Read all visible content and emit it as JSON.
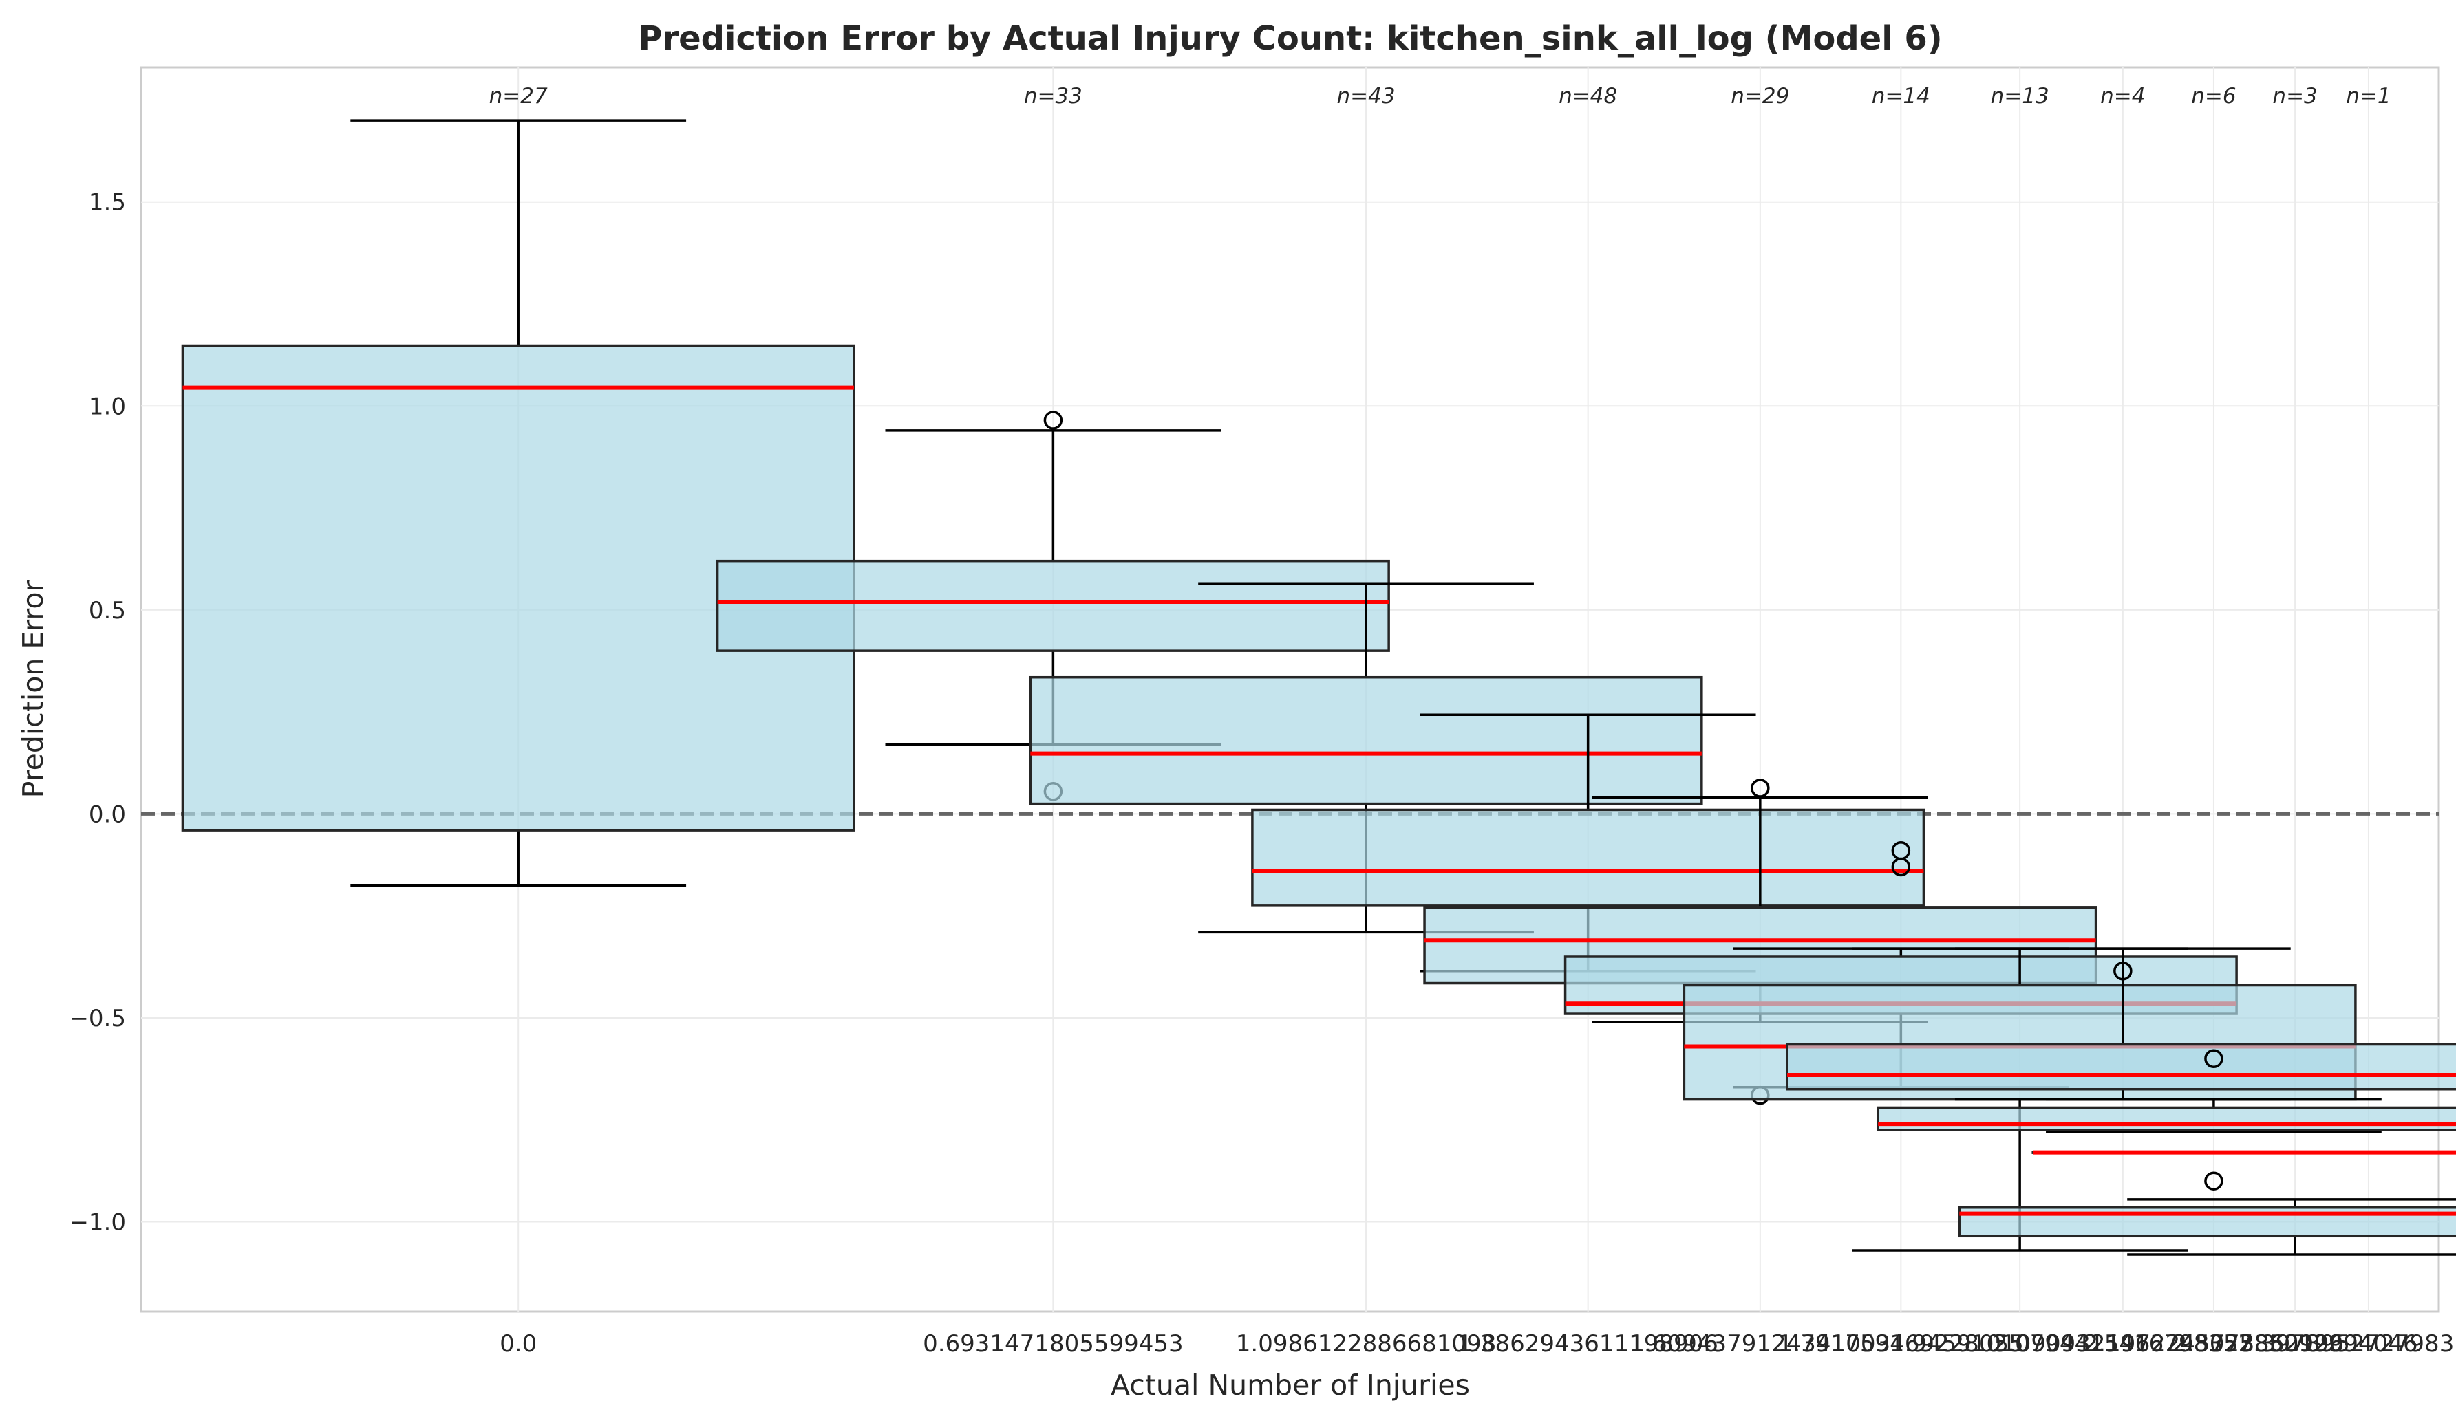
{
  "chart_data": {
    "type": "box",
    "title": "Prediction Error by Actual Injury Count: kitchen_sink_all_log (Model 6)",
    "xlabel": "Actual Number of Injuries",
    "ylabel": "Prediction Error",
    "ylim": [
      -1.22,
      1.83
    ],
    "yticks": [
      -1.0,
      -0.5,
      0.0,
      0.5,
      1.0,
      1.5
    ],
    "ytick_labels": [
      "−1.0",
      "−0.5",
      "0.0",
      "0.5",
      "1.0",
      "1.5"
    ],
    "xlim": [
      -0.4889,
      2.4889
    ],
    "box_width_fraction": 0.87,
    "reference_line_y": 0.0,
    "grid": true,
    "box_fill": "#add8e6",
    "box_edge": "#262626",
    "median_color": "#ff0000",
    "reference_line_color": "#666666",
    "boxes": [
      {
        "label": "0.0",
        "x": 0.0,
        "n": "n=27",
        "whisker_low": -0.175,
        "q1": -0.04,
        "median": 1.045,
        "q3": 1.148,
        "whisker_high": 1.7,
        "outliers": []
      },
      {
        "label": "0.6931471805599453",
        "x": 0.6931,
        "n": "n=33",
        "whisker_low": 0.17,
        "q1": 0.4,
        "median": 0.52,
        "q3": 0.62,
        "whisker_high": 0.94,
        "outliers": [
          0.965,
          0.055
        ]
      },
      {
        "label": "1.0986122886681098",
        "x": 1.0986,
        "n": "n=43",
        "whisker_low": -0.29,
        "q1": 0.025,
        "median": 0.148,
        "q3": 0.335,
        "whisker_high": 0.565,
        "outliers": []
      },
      {
        "label": "1.3862943611198906",
        "x": 1.3863,
        "n": "n=48",
        "whisker_low": -0.385,
        "q1": -0.225,
        "median": -0.14,
        "q3": 0.01,
        "whisker_high": 0.243,
        "outliers": []
      },
      {
        "label": "1.6094379124341003",
        "x": 1.6094,
        "n": "n=29",
        "whisker_low": -0.51,
        "q1": -0.415,
        "median": -0.31,
        "q3": -0.23,
        "whisker_high": 0.04,
        "outliers": [
          0.063,
          -0.69
        ]
      },
      {
        "label": "1.791759469228055",
        "x": 1.7918,
        "n": "n=14",
        "whisker_low": -0.67,
        "q1": -0.49,
        "median": -0.465,
        "q3": -0.35,
        "whisker_high": -0.33,
        "outliers": [
          -0.09,
          -0.13
        ]
      },
      {
        "label": "1.9459101090932196",
        "x": 1.9459,
        "n": "n=13",
        "whisker_low": -1.07,
        "q1": -0.7,
        "median": -0.57,
        "q3": -0.42,
        "whisker_high": -0.33,
        "outliers": []
      },
      {
        "label": "2.0794415416798357",
        "x": 2.0794,
        "n": "n=4",
        "whisker_low": -0.7,
        "q1": -0.675,
        "median": -0.64,
        "q3": -0.565,
        "whisker_high": -0.33,
        "outliers": [
          -0.385
        ]
      },
      {
        "label": "2.1972245773362196",
        "x": 2.1972,
        "n": "n=6",
        "whisker_low": -0.78,
        "q1": -0.775,
        "median": -0.76,
        "q3": -0.72,
        "whisker_high": -0.7,
        "outliers": [
          -0.6,
          -0.9
        ]
      },
      {
        "label": "2.302585092994046",
        "x": 2.3026,
        "n": "n=3",
        "whisker_low": -1.08,
        "q1": -1.035,
        "median": -0.98,
        "q3": -0.965,
        "whisker_high": -0.945,
        "outliers": []
      },
      {
        "label": "2.3978952727983707",
        "x": 2.3979,
        "n": "n=1",
        "whisker_low": -0.83,
        "q1": -0.83,
        "median": -0.83,
        "q3": -0.83,
        "whisker_high": -0.83,
        "outliers": []
      }
    ]
  }
}
